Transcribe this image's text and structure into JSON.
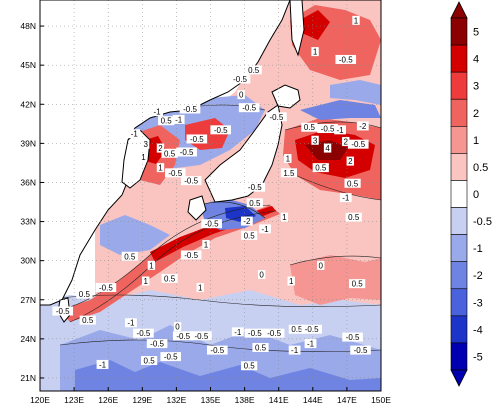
{
  "map": {
    "lon_ticks": [
      "120E",
      "123E",
      "126E",
      "129E",
      "132E",
      "135E",
      "138E",
      "141E",
      "144E",
      "147E",
      "150E"
    ],
    "lat_ticks": [
      "21N",
      "24N",
      "27N",
      "30N",
      "33N",
      "36N",
      "39N",
      "42N",
      "45N",
      "48N"
    ],
    "extent": {
      "lon": [
        120,
        150
      ],
      "lat": [
        20,
        50
      ]
    }
  },
  "colorbar": {
    "labels": [
      "5",
      "4",
      "3",
      "2",
      "1",
      "0.5",
      "0",
      "-0.5",
      "-1",
      "-2",
      "-3",
      "-4",
      "-5"
    ],
    "colors": [
      "#8b0000",
      "#d40000",
      "#ee3b3b",
      "#f0645f",
      "#f59693",
      "#fac4c0",
      "#ffffff",
      "#c8d0f2",
      "#9aa9ea",
      "#6f84e2",
      "#4a62dc",
      "#1c34c8",
      "#0000b0"
    ]
  },
  "contour_labels": [
    {
      "text": "1",
      "lon": 147.8,
      "lat": 48.4
    },
    {
      "text": "1",
      "lon": 144.2,
      "lat": 46.0
    },
    {
      "text": "-0.5",
      "lon": 146.9,
      "lat": 45.4
    },
    {
      "text": "0.5",
      "lon": 138.8,
      "lat": 44.6
    },
    {
      "text": "-0.5",
      "lon": 137.6,
      "lat": 43.9
    },
    {
      "text": "0",
      "lon": 137.7,
      "lat": 42.7
    },
    {
      "text": "-0.5",
      "lon": 138.4,
      "lat": 41.7
    },
    {
      "text": "-0.5",
      "lon": 140.8,
      "lat": 41.0
    },
    {
      "text": "-1",
      "lon": 130.3,
      "lat": 41.4
    },
    {
      "text": "0.5",
      "lon": 131.1,
      "lat": 40.7
    },
    {
      "text": "-1",
      "lon": 132.2,
      "lat": 40.8
    },
    {
      "text": "-0.5",
      "lon": 133.2,
      "lat": 41.6
    },
    {
      "text": "-0.5",
      "lon": 135.9,
      "lat": 40.0
    },
    {
      "text": "-1",
      "lon": 128.3,
      "lat": 39.7
    },
    {
      "text": "-0.5",
      "lon": 133.8,
      "lat": 39.3
    },
    {
      "text": "3",
      "lon": 129.3,
      "lat": 38.9
    },
    {
      "text": "2",
      "lon": 130.6,
      "lat": 38.6
    },
    {
      "text": "0.5",
      "lon": 131.4,
      "lat": 38.2
    },
    {
      "text": "-0.5",
      "lon": 132.9,
      "lat": 38.3
    },
    {
      "text": "1",
      "lon": 129.1,
      "lat": 37.9
    },
    {
      "text": "1",
      "lon": 130.6,
      "lat": 37.1
    },
    {
      "text": "-0.5",
      "lon": 131.9,
      "lat": 36.7
    },
    {
      "text": "-0.5",
      "lon": 133.3,
      "lat": 36.1
    },
    {
      "text": "0.5",
      "lon": 143.7,
      "lat": 40.2
    },
    {
      "text": "-0.5",
      "lon": 145.3,
      "lat": 40.1
    },
    {
      "text": "-1",
      "lon": 146.4,
      "lat": 40.0
    },
    {
      "text": "-2",
      "lon": 148.4,
      "lat": 40.3
    },
    {
      "text": "3",
      "lon": 144.2,
      "lat": 39.2
    },
    {
      "text": "4",
      "lon": 145.3,
      "lat": 38.6
    },
    {
      "text": "2",
      "lon": 146.9,
      "lat": 39.1
    },
    {
      "text": "-0.5",
      "lon": 148.0,
      "lat": 38.9
    },
    {
      "text": "1",
      "lon": 141.8,
      "lat": 37.8
    },
    {
      "text": "2",
      "lon": 147.3,
      "lat": 37.6
    },
    {
      "text": "0.5",
      "lon": 144.7,
      "lat": 37.1
    },
    {
      "text": "1.5",
      "lon": 141.9,
      "lat": 36.7
    },
    {
      "text": "0.5",
      "lon": 147.5,
      "lat": 35.9
    },
    {
      "text": "-1",
      "lon": 146.9,
      "lat": 34.8
    },
    {
      "text": "0.5",
      "lon": 147.6,
      "lat": 33.3
    },
    {
      "text": "-0.5",
      "lon": 138.9,
      "lat": 35.6
    },
    {
      "text": "0.5",
      "lon": 138.9,
      "lat": 34.4
    },
    {
      "text": "1",
      "lon": 141.5,
      "lat": 33.3
    },
    {
      "text": "-2",
      "lon": 138.2,
      "lat": 33.0
    },
    {
      "text": "-1",
      "lon": 139.8,
      "lat": 32.4
    },
    {
      "text": "-0.5",
      "lon": 135.1,
      "lat": 32.8
    },
    {
      "text": "0.5",
      "lon": 138.4,
      "lat": 31.9
    },
    {
      "text": "1",
      "lon": 134.6,
      "lat": 31.2
    },
    {
      "text": "-0.5",
      "lon": 133.3,
      "lat": 30.4
    },
    {
      "text": "0.5",
      "lon": 127.9,
      "lat": 30.3
    },
    {
      "text": "1",
      "lon": 129.8,
      "lat": 29.6
    },
    {
      "text": "0.5",
      "lon": 131.4,
      "lat": 28.6
    },
    {
      "text": "1",
      "lon": 129.3,
      "lat": 28.4
    },
    {
      "text": "-0.5",
      "lon": 125.8,
      "lat": 27.9
    },
    {
      "text": "0.5",
      "lon": 123.9,
      "lat": 27.4
    },
    {
      "text": "1",
      "lon": 134.1,
      "lat": 27.9
    },
    {
      "text": "0",
      "lon": 139.5,
      "lat": 28.9
    },
    {
      "text": "1",
      "lon": 142.1,
      "lat": 28.4
    },
    {
      "text": "0",
      "lon": 144.7,
      "lat": 29.6
    },
    {
      "text": "0.5",
      "lon": 147.9,
      "lat": 28.2
    },
    {
      "text": "-0.5",
      "lon": 122.0,
      "lat": 26.1
    },
    {
      "text": "0.5",
      "lon": 124.2,
      "lat": 25.4
    },
    {
      "text": "-1",
      "lon": 128.0,
      "lat": 25.2
    },
    {
      "text": "-0.5",
      "lon": 129.1,
      "lat": 24.4
    },
    {
      "text": "-0.5",
      "lon": 130.3,
      "lat": 23.6
    },
    {
      "text": "0",
      "lon": 132.1,
      "lat": 24.9
    },
    {
      "text": "-0.5",
      "lon": 132.6,
      "lat": 24.2
    },
    {
      "text": "-0.5",
      "lon": 134.2,
      "lat": 24.2
    },
    {
      "text": "-1",
      "lon": 137.4,
      "lat": 24.5
    },
    {
      "text": "-0.5",
      "lon": 138.9,
      "lat": 24.4
    },
    {
      "text": "-0.5",
      "lon": 140.6,
      "lat": 24.4
    },
    {
      "text": "0.5",
      "lon": 142.6,
      "lat": 24.7
    },
    {
      "text": "-0.5",
      "lon": 143.9,
      "lat": 24.7
    },
    {
      "text": "-0.5",
      "lon": 147.5,
      "lat": 24.1
    },
    {
      "text": "-0.5",
      "lon": 135.6,
      "lat": 23.1
    },
    {
      "text": "0.5",
      "lon": 139.4,
      "lat": 23.3
    },
    {
      "text": "-1",
      "lon": 142.4,
      "lat": 23.1
    },
    {
      "text": "-1",
      "lon": 143.8,
      "lat": 23.6
    },
    {
      "text": "-0.5",
      "lon": 148.2,
      "lat": 23.1
    },
    {
      "text": "-1",
      "lon": 125.5,
      "lat": 22.0
    },
    {
      "text": "0.5",
      "lon": 129.6,
      "lat": 22.3
    },
    {
      "text": "-0.5",
      "lon": 131.5,
      "lat": 22.6
    },
    {
      "text": "0.5",
      "lon": 138.4,
      "lat": 21.9
    }
  ]
}
